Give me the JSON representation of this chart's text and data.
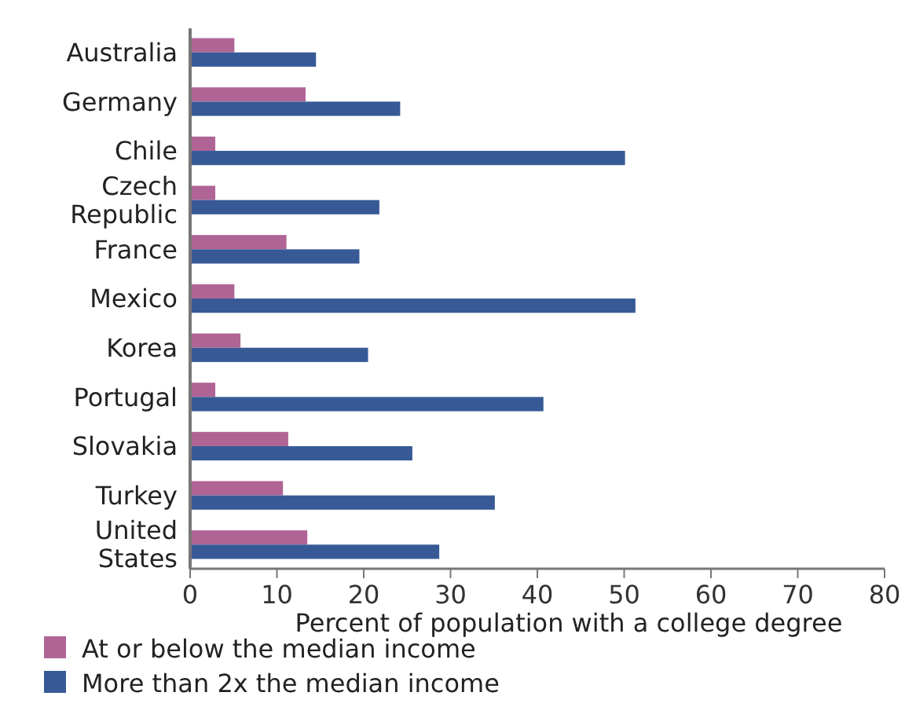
{
  "chart_data": {
    "type": "bar",
    "orientation": "horizontal",
    "xlabel": "Percent of population with a college degree",
    "categories": [
      "Australia",
      "Germany",
      "Chile",
      "Czech Republic",
      "France",
      "Mexico",
      "Korea",
      "Portugal",
      "Slovakia",
      "Turkey",
      "United States"
    ],
    "series": [
      {
        "name": "At or below the median income",
        "color": "#b06496",
        "values": [
          5.1,
          13.3,
          2.9,
          2.9,
          11.1,
          5.1,
          5.8,
          2.9,
          11.3,
          10.7,
          13.5
        ]
      },
      {
        "name": "More than 2x the median income",
        "color": "#375a96",
        "values": [
          14.5,
          24.2,
          50.1,
          21.8,
          19.5,
          51.3,
          20.5,
          40.7,
          25.6,
          35.1,
          28.7
        ]
      }
    ],
    "xlim": [
      0,
      80
    ],
    "xticks": [
      0,
      10,
      20,
      30,
      40,
      50,
      60,
      70,
      80
    ],
    "grid": false,
    "legend": "bottom"
  }
}
